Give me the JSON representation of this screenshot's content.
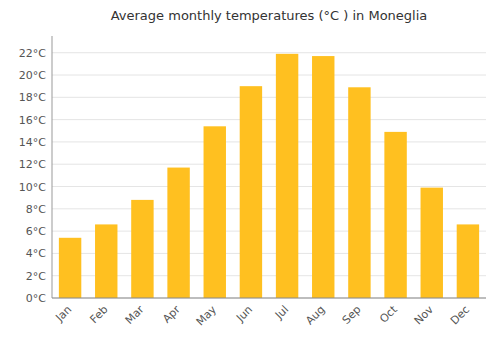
{
  "chart_data": {
    "type": "bar",
    "title": "Average monthly temperatures (°C ) in Moneglia",
    "categories": [
      "Jan",
      "Feb",
      "Mar",
      "Apr",
      "May",
      "Jun",
      "Jul",
      "Aug",
      "Sep",
      "Oct",
      "Nov",
      "Dec"
    ],
    "values": [
      5.4,
      6.6,
      8.8,
      11.7,
      15.4,
      19.0,
      21.9,
      21.7,
      18.9,
      14.9,
      9.9,
      6.6
    ],
    "color": "#FFC020",
    "ylim": [
      0,
      23.5
    ],
    "yticks": [
      {
        "value": 0,
        "label": "0°C"
      },
      {
        "value": 2,
        "label": "2°C"
      },
      {
        "value": 4,
        "label": "4°C"
      },
      {
        "value": 6,
        "label": "6°C"
      },
      {
        "value": 8,
        "label": "8°C"
      },
      {
        "value": 10,
        "label": "10°C"
      },
      {
        "value": 12,
        "label": "12°C"
      },
      {
        "value": 14,
        "label": "14°C"
      },
      {
        "value": 16,
        "label": "16°C"
      },
      {
        "value": 18,
        "label": "18°C"
      },
      {
        "value": 20,
        "label": "20°C"
      },
      {
        "value": 22,
        "label": "22°C"
      }
    ],
    "grid": true
  }
}
